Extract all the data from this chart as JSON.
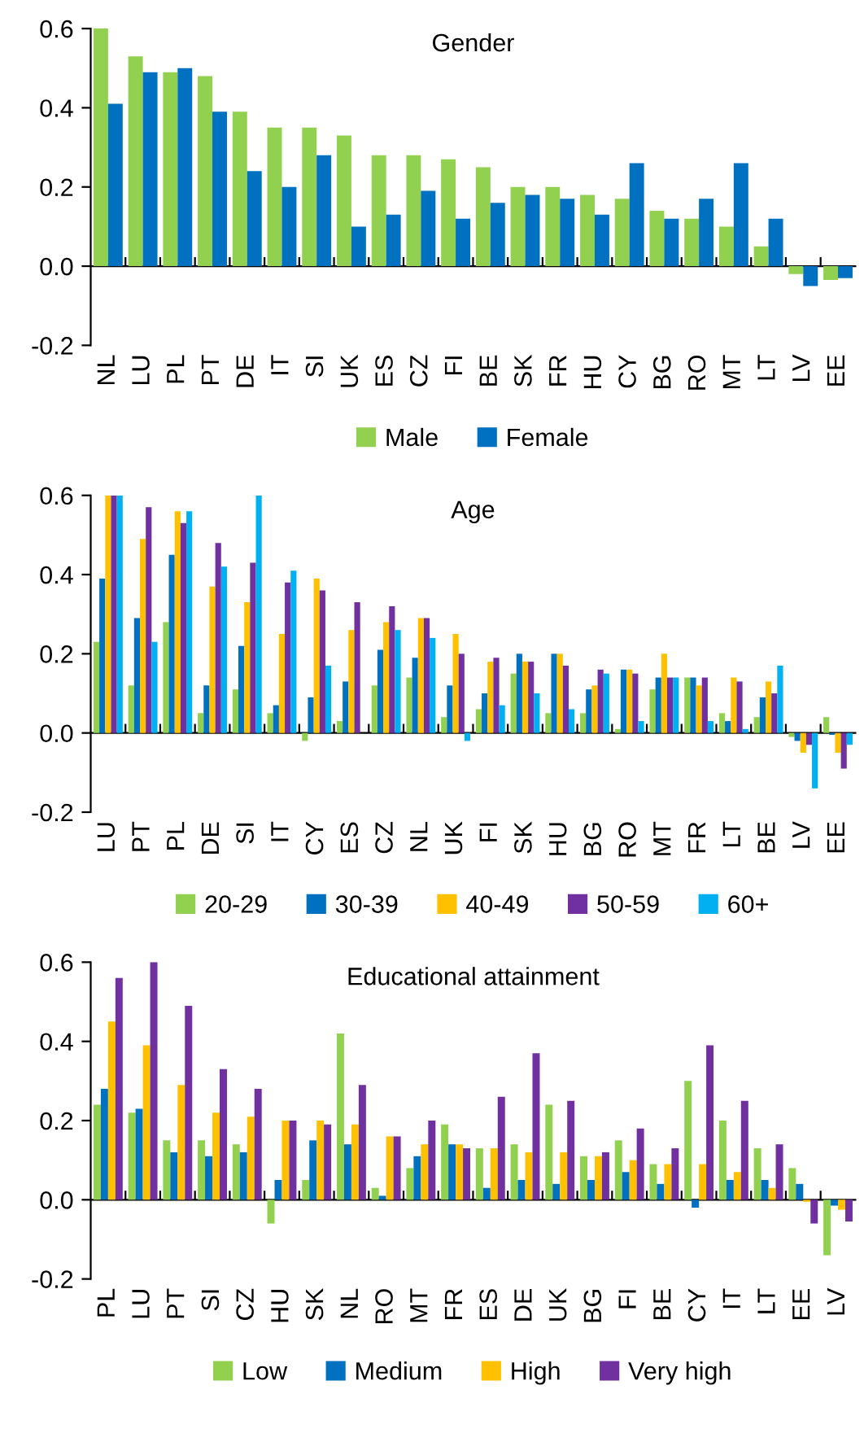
{
  "chart_data": [
    {
      "type": "bar",
      "title": "Gender",
      "categories": [
        "NL",
        "LU",
        "PL",
        "PT",
        "DE",
        "IT",
        "SI",
        "UK",
        "ES",
        "CZ",
        "FI",
        "BE",
        "SK",
        "FR",
        "HU",
        "CY",
        "BG",
        "RO",
        "MT",
        "LT",
        "LV",
        "EE"
      ],
      "series": [
        {
          "name": "Male",
          "color": "#92d050",
          "values": [
            0.6,
            0.53,
            0.49,
            0.48,
            0.39,
            0.35,
            0.35,
            0.33,
            0.28,
            0.28,
            0.27,
            0.25,
            0.2,
            0.2,
            0.18,
            0.17,
            0.14,
            0.12,
            0.1,
            0.05,
            -0.02,
            -0.035
          ]
        },
        {
          "name": "Female",
          "color": "#0070c0",
          "values": [
            0.41,
            0.49,
            0.5,
            0.39,
            0.24,
            0.2,
            0.28,
            0.1,
            0.13,
            0.19,
            0.12,
            0.16,
            0.18,
            0.17,
            0.13,
            0.26,
            0.12,
            0.17,
            0.26,
            0.12,
            -0.05,
            -0.03
          ]
        }
      ],
      "ylim": [
        -0.2,
        0.6
      ],
      "yticks": [
        {
          "value": -0.2,
          "label": "-0.2"
        },
        {
          "value": 0,
          "label": "0.0"
        },
        {
          "value": 0.2,
          "label": "0.2"
        },
        {
          "value": 0.4,
          "label": "0.4"
        },
        {
          "value": 0.6,
          "label": "0.6"
        }
      ],
      "legend": "bottom"
    },
    {
      "type": "bar",
      "title": "Age",
      "categories": [
        "LU",
        "PT",
        "PL",
        "DE",
        "SI",
        "IT",
        "CY",
        "ES",
        "CZ",
        "NL",
        "UK",
        "FI",
        "SK",
        "HU",
        "BG",
        "RO",
        "MT",
        "FR",
        "LT",
        "BE",
        "LV",
        "EE"
      ],
      "series": [
        {
          "name": "20-29",
          "color": "#92d050",
          "values": [
            0.23,
            0.12,
            0.28,
            0.05,
            0.11,
            0.05,
            -0.02,
            0.03,
            0.12,
            0.14,
            0.04,
            0.06,
            0.15,
            0.05,
            0.05,
            0.01,
            0.11,
            0.14,
            0.05,
            0.04,
            -0.01,
            0.04
          ]
        },
        {
          "name": "30-39",
          "color": "#0070c0",
          "values": [
            0.39,
            0.29,
            0.45,
            0.12,
            0.22,
            0.07,
            0.09,
            0.13,
            0.21,
            0.19,
            0.12,
            0.1,
            0.2,
            0.2,
            0.11,
            0.16,
            0.14,
            0.14,
            0.03,
            0.09,
            -0.02,
            -0.005
          ]
        },
        {
          "name": "40-49",
          "color": "#ffc000",
          "values": [
            0.6,
            0.49,
            0.56,
            0.37,
            0.33,
            0.25,
            0.39,
            0.26,
            0.28,
            0.29,
            0.25,
            0.18,
            0.18,
            0.2,
            0.12,
            0.16,
            0.2,
            0.12,
            0.14,
            0.13,
            -0.05,
            -0.05
          ]
        },
        {
          "name": "50-59",
          "color": "#7030a0",
          "values": [
            0.6,
            0.57,
            0.53,
            0.48,
            0.43,
            0.38,
            0.36,
            0.33,
            0.32,
            0.29,
            0.2,
            0.19,
            0.18,
            0.17,
            0.16,
            0.15,
            0.14,
            0.14,
            0.13,
            0.1,
            -0.03,
            -0.09
          ]
        },
        {
          "name": "60+",
          "color": "#00b0f0",
          "values": [
            0.6,
            0.23,
            0.56,
            0.42,
            0.6,
            0.41,
            0.17,
            null,
            0.26,
            0.24,
            -0.02,
            0.07,
            0.1,
            0.06,
            0.15,
            0.03,
            0.14,
            0.03,
            0.01,
            0.17,
            -0.14,
            -0.03
          ]
        }
      ],
      "ylim": [
        -0.2,
        0.6
      ],
      "yticks": [
        {
          "value": -0.2,
          "label": "-0.2"
        },
        {
          "value": 0,
          "label": "0.0"
        },
        {
          "value": 0.2,
          "label": "0.2"
        },
        {
          "value": 0.4,
          "label": "0.4"
        },
        {
          "value": 0.6,
          "label": "0.6"
        }
      ],
      "legend": "bottom"
    },
    {
      "type": "bar",
      "title": "Educational attainment",
      "categories": [
        "PL",
        "LU",
        "PT",
        "SI",
        "CZ",
        "HU",
        "SK",
        "NL",
        "RO",
        "MT",
        "FR",
        "ES",
        "DE",
        "UK",
        "BG",
        "FI",
        "BE",
        "CY",
        "IT",
        "LT",
        "EE",
        "LV"
      ],
      "series": [
        {
          "name": "Low",
          "color": "#92d050",
          "values": [
            0.24,
            0.22,
            0.15,
            0.15,
            0.14,
            -0.06,
            0.05,
            0.42,
            0.03,
            0.08,
            0.19,
            0.13,
            0.14,
            0.24,
            0.11,
            0.15,
            0.09,
            0.3,
            0.2,
            0.13,
            0.08,
            -0.14
          ]
        },
        {
          "name": "Medium",
          "color": "#0070c0",
          "values": [
            0.28,
            0.23,
            0.12,
            0.11,
            0.12,
            0.05,
            0.15,
            0.14,
            0.01,
            0.11,
            0.14,
            0.03,
            0.05,
            0.04,
            0.05,
            0.07,
            0.04,
            -0.02,
            0.05,
            0.05,
            0.04,
            -0.015
          ]
        },
        {
          "name": "High",
          "color": "#ffc000",
          "values": [
            0.45,
            0.39,
            0.29,
            0.22,
            0.21,
            0.2,
            0.2,
            0.19,
            0.16,
            0.14,
            0.14,
            0.13,
            0.12,
            0.12,
            0.11,
            0.1,
            0.09,
            0.09,
            0.07,
            0.03,
            -0.005,
            -0.025
          ]
        },
        {
          "name": "Very high",
          "color": "#7030a0",
          "values": [
            0.56,
            0.6,
            0.49,
            0.33,
            0.28,
            0.2,
            0.19,
            0.29,
            0.16,
            0.2,
            0.13,
            0.26,
            0.37,
            0.25,
            0.12,
            0.18,
            0.13,
            0.39,
            0.25,
            0.14,
            -0.06,
            -0.055
          ]
        }
      ],
      "ylim": [
        -0.2,
        0.6
      ],
      "yticks": [
        {
          "value": -0.2,
          "label": "-0.2"
        },
        {
          "value": 0,
          "label": "0.0"
        },
        {
          "value": 0.2,
          "label": "0.2"
        },
        {
          "value": 0.4,
          "label": "0.4"
        },
        {
          "value": 0.6,
          "label": "0.6"
        }
      ],
      "legend": "bottom"
    }
  ]
}
